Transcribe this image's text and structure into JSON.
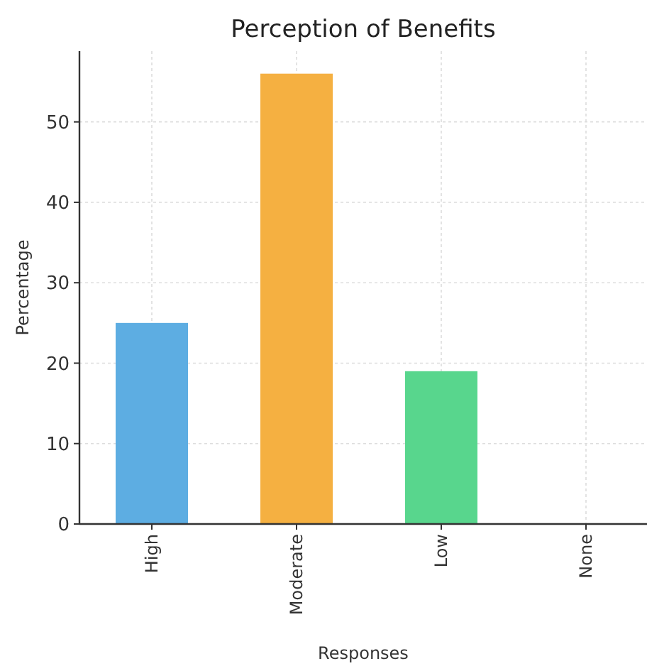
{
  "chart_data": {
    "type": "bar",
    "title": "Perception of Benefits",
    "xlabel": "Responses",
    "ylabel": "Percentage",
    "categories": [
      "High",
      "Moderate",
      "Low",
      "None"
    ],
    "values": [
      25,
      56,
      19,
      0
    ],
    "colors": [
      "#5dade2",
      "#f5b041",
      "#58d68d",
      "#ec7063"
    ],
    "ylim": [
      0,
      58.8
    ],
    "yticks": [
      0,
      10,
      20,
      30,
      40,
      50
    ],
    "grid": true
  }
}
